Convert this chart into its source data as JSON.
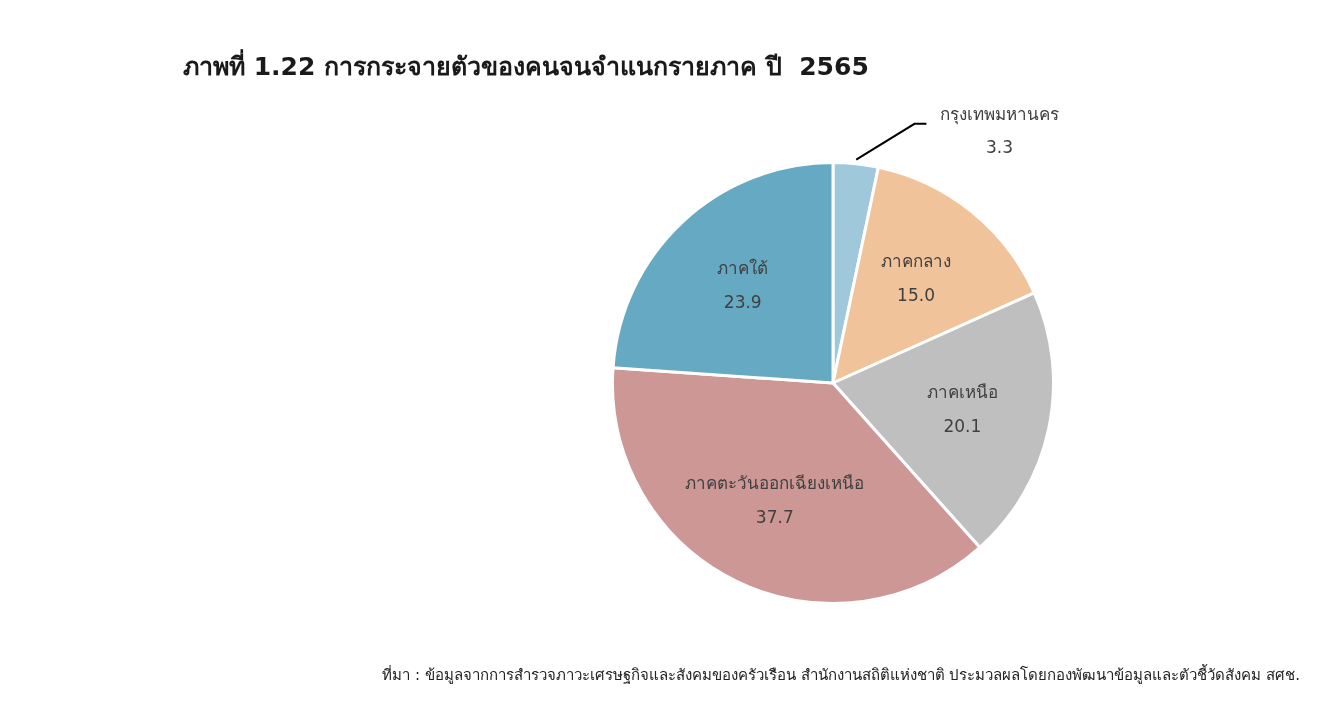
{
  "chart_data": {
    "type": "pie",
    "title": "ภาพที่ 1.22 การกระจายตัวของคนจนจำแนกรายภาค ปี  2565",
    "categories": [
      "กรุงเทพมหานคร",
      "ภาคกลาง",
      "ภาคเหนือ",
      "ภาคตะวันออกเฉียงเหนือ",
      "ภาคใต้"
    ],
    "values": [
      3.3,
      15.0,
      20.1,
      37.7,
      23.9
    ],
    "colors": [
      "#9fc9da",
      "#f1c39a",
      "#bfbfbf",
      "#cc9795",
      "#66a9c3"
    ],
    "value_labels": [
      "3.3",
      "15.0",
      "20.1",
      "37.7",
      "23.9"
    ],
    "legend": false,
    "annotations": [
      "ที่มา : ข้อมูลจากการสำรวจภาวะเศรษฐกิจและสังคมของครัวเรือน สำนักงานสถิติแห่งชาติ ประมวลผลโดยกองพัฒนาข้อมูลและตัวชี้วัดสังคม สศช."
    ]
  }
}
